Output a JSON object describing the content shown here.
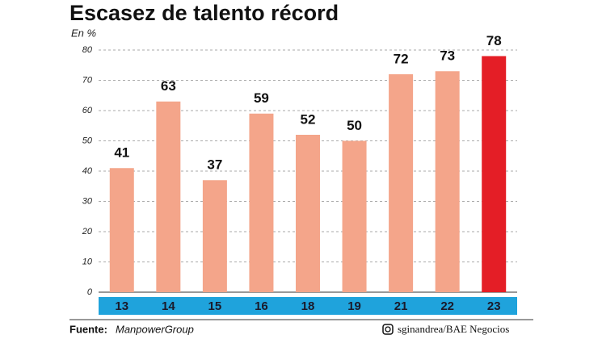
{
  "chart_data": {
    "type": "bar",
    "title": "Escasez de talento récord",
    "y_label": "En %",
    "categories": [
      "13",
      "14",
      "15",
      "16",
      "18",
      "19",
      "21",
      "22",
      "23"
    ],
    "values": [
      41,
      63,
      37,
      59,
      52,
      50,
      72,
      73,
      78
    ],
    "colors": [
      "#f4a58a",
      "#f4a58a",
      "#f4a58a",
      "#f4a58a",
      "#f4a58a",
      "#f4a58a",
      "#f4a58a",
      "#f4a58a",
      "#e41e26"
    ],
    "ylim": [
      0,
      80
    ],
    "yticks": [
      0,
      10,
      20,
      30,
      40,
      50,
      60,
      70,
      80
    ],
    "grid": true,
    "source_label": "Fuente:",
    "source": "ManpowerGroup",
    "credit": "sginandrea/BAE Negocios"
  }
}
